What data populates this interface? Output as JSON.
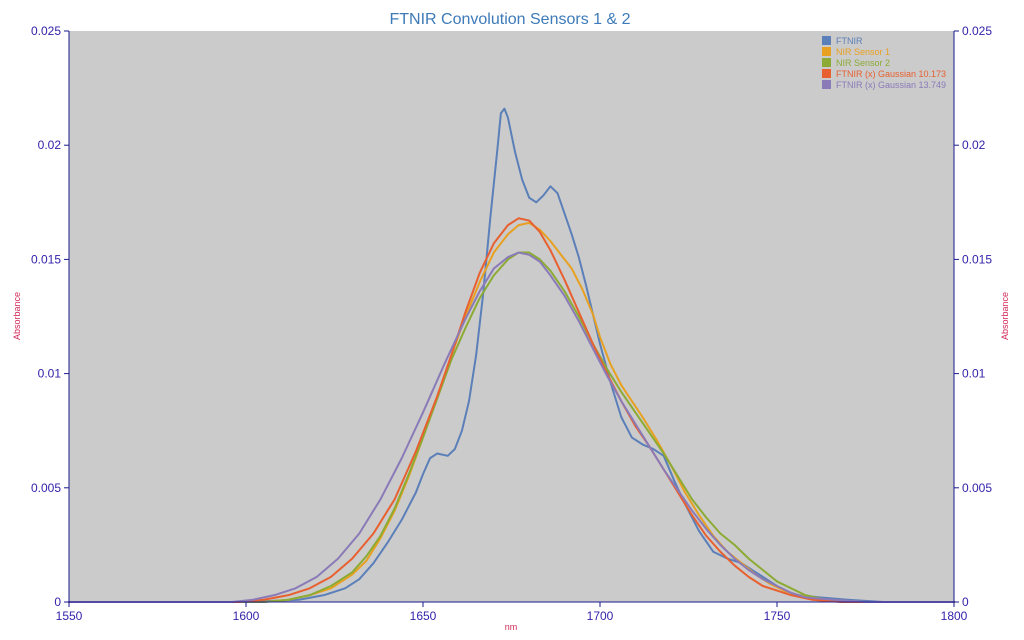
{
  "chart_data": {
    "type": "line",
    "title": "FTNIR Convolution Sensors 1 & 2",
    "xlabel": "nm",
    "ylabel_left": "Absorbance",
    "ylabel_right": "Absorbance",
    "xlim": [
      1550,
      1800
    ],
    "ylim": [
      0,
      0.025
    ],
    "x_ticks": [
      "1550",
      "1600",
      "1650",
      "1700",
      "1750",
      "1800"
    ],
    "y_ticks": [
      "0",
      "0.005",
      "0.01",
      "0.015",
      "0.02",
      "0.025"
    ],
    "grid": false,
    "legend_position": "top-right",
    "colors": {
      "plot_background": "#cbcbcb",
      "axis": "#1a1a8c",
      "tick_text": "#3322aa",
      "title": "#3d7ab8",
      "axis_label": "#d42a5a"
    },
    "series": [
      {
        "name": "FTNIR",
        "color": "#5b7fb8",
        "points": [
          [
            1550,
            0
          ],
          [
            1600,
            0
          ],
          [
            1615,
            0.0001
          ],
          [
            1622,
            0.0003
          ],
          [
            1628,
            0.0006
          ],
          [
            1632,
            0.001
          ],
          [
            1636,
            0.0017
          ],
          [
            1640,
            0.0026
          ],
          [
            1644,
            0.0036
          ],
          [
            1648,
            0.0048
          ],
          [
            1650,
            0.0056
          ],
          [
            1652,
            0.0063
          ],
          [
            1654,
            0.0065
          ],
          [
            1657,
            0.0064
          ],
          [
            1659,
            0.0067
          ],
          [
            1661,
            0.0075
          ],
          [
            1663,
            0.0088
          ],
          [
            1665,
            0.0108
          ],
          [
            1667,
            0.0135
          ],
          [
            1669,
            0.0168
          ],
          [
            1671,
            0.0198
          ],
          [
            1672,
            0.0214
          ],
          [
            1673,
            0.0216
          ],
          [
            1674,
            0.0212
          ],
          [
            1676,
            0.0197
          ],
          [
            1678,
            0.0185
          ],
          [
            1680,
            0.0177
          ],
          [
            1682,
            0.0175
          ],
          [
            1684,
            0.0178
          ],
          [
            1686,
            0.0182
          ],
          [
            1688,
            0.0179
          ],
          [
            1690,
            0.017
          ],
          [
            1692,
            0.0161
          ],
          [
            1694,
            0.0151
          ],
          [
            1696,
            0.0139
          ],
          [
            1698,
            0.0126
          ],
          [
            1700,
            0.0113
          ],
          [
            1703,
            0.0096
          ],
          [
            1706,
            0.0081
          ],
          [
            1709,
            0.0072
          ],
          [
            1712,
            0.0069
          ],
          [
            1715,
            0.0067
          ],
          [
            1718,
            0.0064
          ],
          [
            1721,
            0.0053
          ],
          [
            1724,
            0.0043
          ],
          [
            1728,
            0.0031
          ],
          [
            1732,
            0.0022
          ],
          [
            1736,
            0.0019
          ],
          [
            1740,
            0.0017
          ],
          [
            1744,
            0.0013
          ],
          [
            1748,
            0.0009
          ],
          [
            1752,
            0.0005
          ],
          [
            1756,
            0.0003
          ],
          [
            1762,
            0.0002
          ],
          [
            1770,
            0.0001
          ],
          [
            1780,
            0
          ],
          [
            1800,
            0
          ]
        ]
      },
      {
        "name": "NIR Sensor 1",
        "color": "#e8a020",
        "points": [
          [
            1550,
            0
          ],
          [
            1605,
            0
          ],
          [
            1612,
            0.0001
          ],
          [
            1618,
            0.0003
          ],
          [
            1624,
            0.0006
          ],
          [
            1630,
            0.0012
          ],
          [
            1634,
            0.0018
          ],
          [
            1638,
            0.0028
          ],
          [
            1642,
            0.004
          ],
          [
            1646,
            0.0055
          ],
          [
            1650,
            0.0072
          ],
          [
            1654,
            0.009
          ],
          [
            1658,
            0.0108
          ],
          [
            1662,
            0.0125
          ],
          [
            1666,
            0.014
          ],
          [
            1670,
            0.0153
          ],
          [
            1674,
            0.0161
          ],
          [
            1677,
            0.0165
          ],
          [
            1680,
            0.0166
          ],
          [
            1683,
            0.0163
          ],
          [
            1686,
            0.0158
          ],
          [
            1689,
            0.0152
          ],
          [
            1692,
            0.0146
          ],
          [
            1695,
            0.0137
          ],
          [
            1698,
            0.0126
          ],
          [
            1700,
            0.0116
          ],
          [
            1703,
            0.0104
          ],
          [
            1706,
            0.0095
          ],
          [
            1709,
            0.0088
          ],
          [
            1712,
            0.0081
          ],
          [
            1716,
            0.0071
          ],
          [
            1720,
            0.006
          ],
          [
            1724,
            0.0048
          ],
          [
            1728,
            0.0038
          ],
          [
            1732,
            0.0029
          ],
          [
            1736,
            0.0022
          ],
          [
            1740,
            0.0017
          ],
          [
            1744,
            0.0012
          ],
          [
            1748,
            0.0008
          ],
          [
            1752,
            0.0005
          ],
          [
            1756,
            0.0003
          ],
          [
            1762,
            0.0001
          ],
          [
            1770,
            0
          ],
          [
            1800,
            0
          ]
        ]
      },
      {
        "name": "NIR Sensor 2",
        "color": "#8cab34",
        "points": [
          [
            1550,
            0
          ],
          [
            1605,
            0
          ],
          [
            1612,
            0.0001
          ],
          [
            1618,
            0.0003
          ],
          [
            1624,
            0.0007
          ],
          [
            1630,
            0.0013
          ],
          [
            1634,
            0.002
          ],
          [
            1638,
            0.0029
          ],
          [
            1642,
            0.0041
          ],
          [
            1646,
            0.0056
          ],
          [
            1650,
            0.0072
          ],
          [
            1654,
            0.0089
          ],
          [
            1658,
            0.0106
          ],
          [
            1662,
            0.012
          ],
          [
            1666,
            0.0133
          ],
          [
            1670,
            0.0143
          ],
          [
            1674,
            0.015
          ],
          [
            1677,
            0.0153
          ],
          [
            1680,
            0.0153
          ],
          [
            1683,
            0.015
          ],
          [
            1686,
            0.0145
          ],
          [
            1690,
            0.0136
          ],
          [
            1694,
            0.0125
          ],
          [
            1698,
            0.0113
          ],
          [
            1702,
            0.0102
          ],
          [
            1706,
            0.0092
          ],
          [
            1710,
            0.0083
          ],
          [
            1714,
            0.0074
          ],
          [
            1718,
            0.0065
          ],
          [
            1722,
            0.0055
          ],
          [
            1726,
            0.0045
          ],
          [
            1730,
            0.0037
          ],
          [
            1734,
            0.003
          ],
          [
            1738,
            0.0025
          ],
          [
            1742,
            0.0019
          ],
          [
            1746,
            0.0014
          ],
          [
            1750,
            0.0009
          ],
          [
            1754,
            0.0006
          ],
          [
            1758,
            0.0003
          ],
          [
            1764,
            0.0001
          ],
          [
            1772,
            0
          ],
          [
            1800,
            0
          ]
        ]
      },
      {
        "name": "FTNIR (x) Gaussian 10.173",
        "color": "#e86030",
        "points": [
          [
            1550,
            0
          ],
          [
            1598,
            0
          ],
          [
            1605,
            0.0001
          ],
          [
            1612,
            0.0003
          ],
          [
            1618,
            0.0006
          ],
          [
            1624,
            0.0011
          ],
          [
            1630,
            0.0019
          ],
          [
            1636,
            0.003
          ],
          [
            1642,
            0.0045
          ],
          [
            1648,
            0.0066
          ],
          [
            1654,
            0.009
          ],
          [
            1658,
            0.0108
          ],
          [
            1662,
            0.0127
          ],
          [
            1666,
            0.0144
          ],
          [
            1670,
            0.0157
          ],
          [
            1674,
            0.0165
          ],
          [
            1677,
            0.0168
          ],
          [
            1680,
            0.0167
          ],
          [
            1683,
            0.0162
          ],
          [
            1686,
            0.0154
          ],
          [
            1690,
            0.0141
          ],
          [
            1694,
            0.0127
          ],
          [
            1698,
            0.0113
          ],
          [
            1702,
            0.01
          ],
          [
            1706,
            0.0088
          ],
          [
            1710,
            0.0077
          ],
          [
            1714,
            0.0068
          ],
          [
            1718,
            0.0058
          ],
          [
            1722,
            0.0048
          ],
          [
            1726,
            0.0038
          ],
          [
            1730,
            0.0029
          ],
          [
            1734,
            0.0022
          ],
          [
            1738,
            0.0016
          ],
          [
            1742,
            0.0011
          ],
          [
            1746,
            0.0007
          ],
          [
            1750,
            0.0005
          ],
          [
            1754,
            0.0003
          ],
          [
            1760,
            0.0001
          ],
          [
            1768,
            0
          ],
          [
            1800,
            0
          ]
        ]
      },
      {
        "name": "FTNIR (x) Gaussian 13.749",
        "color": "#8a7ab8",
        "points": [
          [
            1550,
            0
          ],
          [
            1596,
            0
          ],
          [
            1602,
            0.0001
          ],
          [
            1608,
            0.0003
          ],
          [
            1614,
            0.0006
          ],
          [
            1620,
            0.0011
          ],
          [
            1626,
            0.0019
          ],
          [
            1632,
            0.003
          ],
          [
            1638,
            0.0045
          ],
          [
            1644,
            0.0063
          ],
          [
            1650,
            0.0083
          ],
          [
            1656,
            0.0104
          ],
          [
            1662,
            0.0124
          ],
          [
            1666,
            0.0136
          ],
          [
            1670,
            0.0146
          ],
          [
            1674,
            0.0151
          ],
          [
            1677,
            0.0153
          ],
          [
            1680,
            0.0152
          ],
          [
            1683,
            0.0149
          ],
          [
            1686,
            0.0143
          ],
          [
            1690,
            0.0134
          ],
          [
            1694,
            0.0123
          ],
          [
            1698,
            0.0111
          ],
          [
            1702,
            0.0099
          ],
          [
            1706,
            0.0088
          ],
          [
            1710,
            0.0078
          ],
          [
            1714,
            0.0068
          ],
          [
            1718,
            0.0058
          ],
          [
            1722,
            0.0049
          ],
          [
            1726,
            0.004
          ],
          [
            1730,
            0.0032
          ],
          [
            1734,
            0.0025
          ],
          [
            1738,
            0.0019
          ],
          [
            1742,
            0.0014
          ],
          [
            1746,
            0.001
          ],
          [
            1750,
            0.0007
          ],
          [
            1754,
            0.0004
          ],
          [
            1758,
            0.0002
          ],
          [
            1766,
            0.0001
          ],
          [
            1775,
            0
          ],
          [
            1800,
            0
          ]
        ]
      }
    ]
  }
}
